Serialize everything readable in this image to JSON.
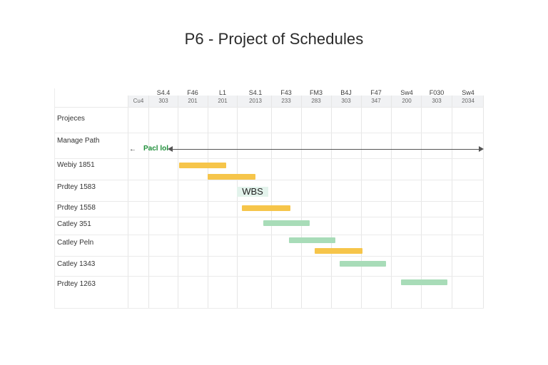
{
  "window": {
    "title": "P6 - Project of Schedules"
  },
  "timeline": {
    "top_labels": [
      "S4.4",
      "F46",
      "L1",
      "S4.1",
      "F43",
      "FM3",
      "B4J",
      "F47",
      "Sw4",
      "F030",
      "Sw4"
    ],
    "sub_labels": [
      "Cu4",
      "303",
      "201",
      "201",
      "2013",
      "233",
      "283",
      "303",
      "347",
      "200",
      "303",
      "2034"
    ]
  },
  "rows": [
    {
      "label": "Projeces"
    },
    {
      "label": "Manage Path"
    },
    {
      "label": ""
    },
    {
      "label": "Webiy 1851"
    },
    {
      "label": "Prdtey 1583"
    },
    {
      "label": "Prdtey 1558"
    },
    {
      "label": "Catley 351"
    },
    {
      "label": "Catley Peln"
    },
    {
      "label": "Catley 1343"
    },
    {
      "label": "Prdtey 1263"
    }
  ],
  "milestone": {
    "arrow_left": "←",
    "label": "Pacl lol"
  },
  "wbs_tag": "WBS",
  "colors": {
    "orange": "#f6c54a",
    "green": "#a8dcb8",
    "arrow": "#555555",
    "label_green": "#1f8f3a"
  }
}
